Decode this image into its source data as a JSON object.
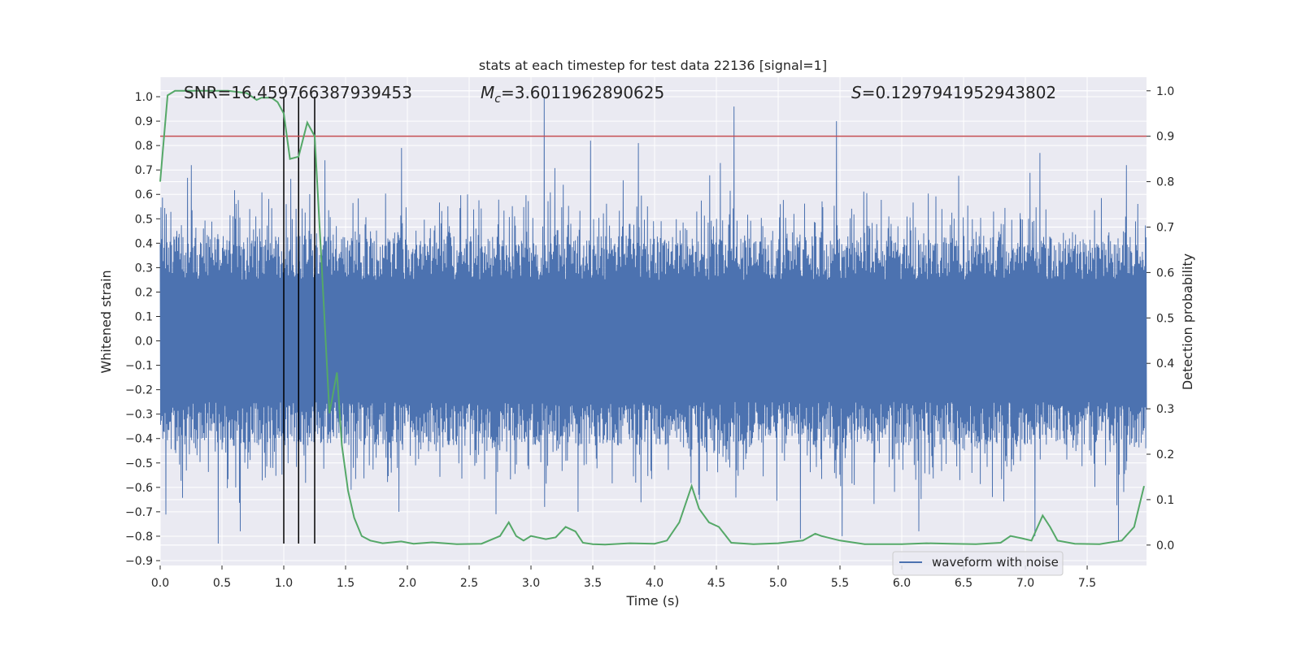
{
  "chart_data": {
    "type": "line",
    "title": "stats at each timestep for test data 22136 [signal=1]",
    "xlabel": "Time (s)",
    "ylabel": "Whitened strain",
    "y2label": "Detection probability",
    "xlim": [
      0.0,
      7.98
    ],
    "ylim": [
      -0.92,
      1.08
    ],
    "y2lim": [
      -0.045,
      1.03
    ],
    "xticks": [
      "0.0",
      "0.5",
      "1.0",
      "1.5",
      "2.0",
      "2.5",
      "3.0",
      "3.5",
      "4.0",
      "4.5",
      "5.0",
      "5.5",
      "6.0",
      "6.5",
      "7.0",
      "7.5"
    ],
    "yticks": [
      "1.0",
      "0.9",
      "0.8",
      "0.7",
      "0.6",
      "0.5",
      "0.4",
      "0.3",
      "0.2",
      "0.1",
      "0.0",
      "−0.1",
      "−0.2",
      "−0.3",
      "−0.4",
      "−0.5",
      "−0.6",
      "−0.7",
      "−0.8",
      "−0.9"
    ],
    "y2ticks": [
      "1.0",
      "0.9",
      "0.8",
      "0.7",
      "0.6",
      "0.5",
      "0.4",
      "0.3",
      "0.2",
      "0.1",
      "0.0"
    ],
    "annotations": {
      "snr": "SNR=16.459766387939453",
      "mc_symbol": "M",
      "mc_sub": "c",
      "mc_value": "=3.6011962890625",
      "s_symbol": "S",
      "s_value": "=0.1297941952943802"
    },
    "legend": {
      "label": "waveform with noise",
      "location": "lower-right"
    },
    "threshold": {
      "y2": 0.9,
      "color": "#c44e52"
    },
    "vertical_lines": [
      1.0,
      1.12,
      1.25
    ],
    "vertical_lines_range": [
      -0.83,
      1.0
    ],
    "waveform": {
      "name": "waveform with noise",
      "color": "#4c72b0",
      "seed": 22136,
      "spikes": [
        {
          "t": 0.47,
          "v": -0.83
        },
        {
          "t": 0.65,
          "v": -0.78
        },
        {
          "t": 0.25,
          "v": 0.72
        },
        {
          "t": 1.33,
          "v": 0.74
        },
        {
          "t": 1.93,
          "v": -0.7
        },
        {
          "t": 1.95,
          "v": 0.79
        },
        {
          "t": 2.72,
          "v": -0.71
        },
        {
          "t": 3.11,
          "v": 1.0
        },
        {
          "t": 3.11,
          "v": -0.68
        },
        {
          "t": 3.38,
          "v": -0.7
        },
        {
          "t": 3.48,
          "v": 0.82
        },
        {
          "t": 3.87,
          "v": 0.81
        },
        {
          "t": 4.64,
          "v": 0.96
        },
        {
          "t": 5.18,
          "v": -0.81
        },
        {
          "t": 5.47,
          "v": 0.9
        },
        {
          "t": 5.52,
          "v": -0.8
        },
        {
          "t": 6.14,
          "v": -0.78
        },
        {
          "t": 7.08,
          "v": -0.8
        },
        {
          "t": 7.12,
          "v": 0.77
        },
        {
          "t": 7.75,
          "v": -0.82
        },
        {
          "t": 7.82,
          "v": 0.72
        }
      ]
    },
    "probability": {
      "name": "detection probability",
      "color": "#55a868",
      "t": [
        0.0,
        0.06,
        0.12,
        0.2,
        0.35,
        0.55,
        0.7,
        0.78,
        0.82,
        0.9,
        0.95,
        1.0,
        1.05,
        1.12,
        1.19,
        1.25,
        1.31,
        1.37,
        1.43,
        1.47,
        1.52,
        1.57,
        1.63,
        1.7,
        1.8,
        1.95,
        2.05,
        2.2,
        2.4,
        2.6,
        2.75,
        2.82,
        2.88,
        2.94,
        3.0,
        3.12,
        3.2,
        3.28,
        3.36,
        3.42,
        3.5,
        3.6,
        3.8,
        4.0,
        4.1,
        4.2,
        4.3,
        4.36,
        4.44,
        4.52,
        4.62,
        4.8,
        5.0,
        5.2,
        5.3,
        5.35,
        5.5,
        5.7,
        6.0,
        6.2,
        6.4,
        6.6,
        6.8,
        6.88,
        6.97,
        7.05,
        7.14,
        7.2,
        7.26,
        7.4,
        7.6,
        7.78,
        7.88,
        7.96
      ],
      "values": [
        0.8,
        0.99,
        1.0,
        1.0,
        1.0,
        1.0,
        0.995,
        0.98,
        0.985,
        0.985,
        0.975,
        0.95,
        0.85,
        0.855,
        0.93,
        0.9,
        0.6,
        0.29,
        0.38,
        0.22,
        0.12,
        0.06,
        0.02,
        0.01,
        0.004,
        0.008,
        0.003,
        0.006,
        0.002,
        0.003,
        0.02,
        0.05,
        0.02,
        0.01,
        0.02,
        0.013,
        0.017,
        0.04,
        0.03,
        0.005,
        0.002,
        0.001,
        0.004,
        0.003,
        0.01,
        0.05,
        0.13,
        0.08,
        0.05,
        0.04,
        0.005,
        0.002,
        0.004,
        0.01,
        0.025,
        0.02,
        0.01,
        0.002,
        0.002,
        0.004,
        0.003,
        0.002,
        0.005,
        0.02,
        0.015,
        0.01,
        0.065,
        0.04,
        0.01,
        0.003,
        0.002,
        0.01,
        0.04,
        0.13
      ]
    }
  }
}
